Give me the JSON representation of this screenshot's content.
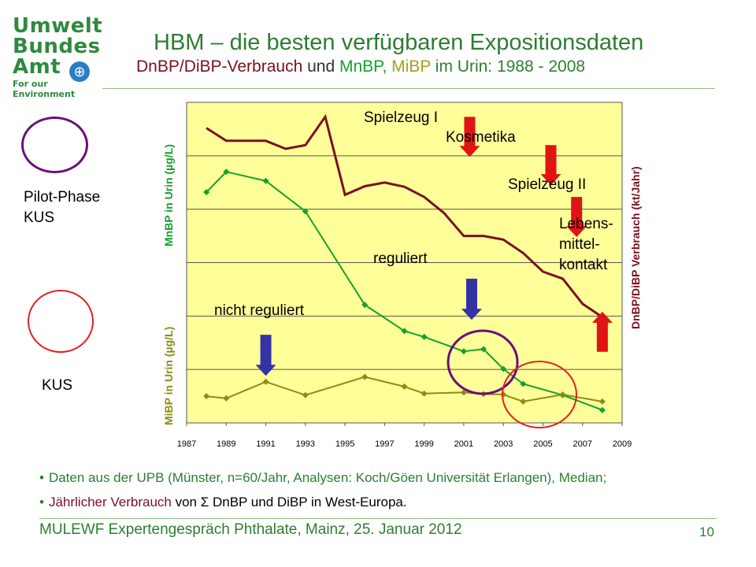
{
  "header": {
    "title": "HBM – die besten verfügbaren Expositionsdaten",
    "subtitle_part1": "DnBP/DiBP-Verbrauch",
    "subtitle_part2": " und ",
    "subtitle_part3": "MnBP,",
    "subtitle_part4": " MiBP",
    "subtitle_part5": " im Urin: 1988 - 2008"
  },
  "logo": {
    "line1": "Umwelt",
    "line2": "Bundes",
    "line3": "Amt",
    "tagline": "For our Environment"
  },
  "legend": {
    "pilot_label": "Pilot-Phase KUS",
    "kus_label": "KUS"
  },
  "chart_data": {
    "type": "line",
    "x_ticks": [
      "1987",
      "1989",
      "1991",
      "1993",
      "1995",
      "1997",
      "1999",
      "2001",
      "2003",
      "2005",
      "2007",
      "2009"
    ],
    "xlim": [
      1987,
      2009
    ],
    "ylabel_left_top": "MnBP in Urin (µg/L)",
    "ylabel_left_bottom": "MiBP in Urin (µg/L)",
    "ylabel_right": "DnBP/DiBP Verbrauch (kt/Jahr)",
    "grid": true,
    "plot_background": "#ffff99",
    "series": [
      {
        "key": "consumption",
        "color": "#7b1022",
        "markers": false,
        "points": [
          [
            1988,
            5.52
          ],
          [
            1989,
            5.28
          ],
          [
            1990,
            5.28
          ],
          [
            1991,
            5.28
          ],
          [
            1992,
            5.13
          ],
          [
            1993,
            5.2
          ],
          [
            1994,
            5.73
          ],
          [
            1995,
            4.27
          ],
          [
            1996,
            4.43
          ],
          [
            1997,
            4.5
          ],
          [
            1998,
            4.42
          ],
          [
            1999,
            4.23
          ],
          [
            2000,
            3.93
          ],
          [
            2001,
            3.5
          ],
          [
            2002,
            3.5
          ],
          [
            2003,
            3.43
          ],
          [
            2004,
            3.18
          ],
          [
            2005,
            2.83
          ],
          [
            2006,
            2.7
          ],
          [
            2007,
            2.23
          ],
          [
            2008,
            1.98
          ]
        ]
      },
      {
        "key": "mnbp",
        "color": "#16a02c",
        "markers": true,
        "points": [
          [
            1988,
            4.32
          ],
          [
            1989,
            4.7
          ],
          [
            1991,
            4.53
          ],
          [
            1993,
            3.96
          ],
          [
            1996,
            2.21
          ],
          [
            1998,
            1.72
          ],
          [
            1999,
            1.61
          ],
          [
            2001,
            1.34
          ],
          [
            2002,
            1.38
          ],
          [
            2003,
            1.01
          ],
          [
            2004,
            0.73
          ],
          [
            2006,
            0.52
          ],
          [
            2008,
            0.24
          ]
        ]
      },
      {
        "key": "mibp",
        "color": "#8c8c14",
        "markers": true,
        "points": [
          [
            1988,
            0.5
          ],
          [
            1989,
            0.46
          ],
          [
            1991,
            0.77
          ],
          [
            1993,
            0.52
          ],
          [
            1996,
            0.86
          ],
          [
            1998,
            0.68
          ],
          [
            1999,
            0.55
          ],
          [
            2001,
            0.57
          ],
          [
            2002,
            0.54
          ],
          [
            2003,
            0.53
          ],
          [
            2004,
            0.4
          ],
          [
            2006,
            0.53
          ],
          [
            2008,
            0.4
          ]
        ]
      }
    ],
    "annotations": {
      "spielzeug1": "Spielzeug I",
      "kosmetika": "Kosmetika",
      "spielzeug2": "Spielzeug II",
      "lebens1": "Lebens-",
      "lebens2": "mittel-",
      "lebens3": "kontakt",
      "reguliert": "reguliert",
      "nicht_reguliert": "nicht reguliert"
    },
    "arrows": [
      {
        "name": "arrow-spielzeug1",
        "color": "#e01414",
        "dir": "down",
        "year": 2001.3,
        "from": 5.73,
        "to": 4.98
      },
      {
        "name": "arrow-kosmetika",
        "color": "#e01414",
        "dir": "down",
        "year": 2005.4,
        "from": 5.2,
        "to": 4.45
      },
      {
        "name": "arrow-spielzeug2",
        "color": "#e01414",
        "dir": "down",
        "year": 2006.7,
        "from": 4.23,
        "to": 3.48
      },
      {
        "name": "arrow-lebensmittel",
        "color": "#e01414",
        "dir": "up",
        "year": 2008,
        "from": 1.33,
        "to": 2.08
      },
      {
        "name": "arrow-reguliert",
        "color": "#3333a6",
        "dir": "down",
        "year": 2001.4,
        "from": 2.7,
        "to": 1.93
      },
      {
        "name": "arrow-nicht-reguliert",
        "color": "#3333a6",
        "dir": "down",
        "year": 1991,
        "from": 1.65,
        "to": 0.88
      }
    ]
  },
  "bullets": {
    "b1": "Daten aus der UPB (Münster, n=60/Jahr, Analysen: Koch/Göen Universität Erlangen), Median;",
    "b2_part1": "Jährlicher Verbrauch",
    "b2_part2": " von Σ DnBP und DiBP in West-Europa."
  },
  "footer": {
    "text": "MULEWF Expertengespräch Phthalate, Mainz, 25. Januar 2012",
    "page": "10"
  }
}
